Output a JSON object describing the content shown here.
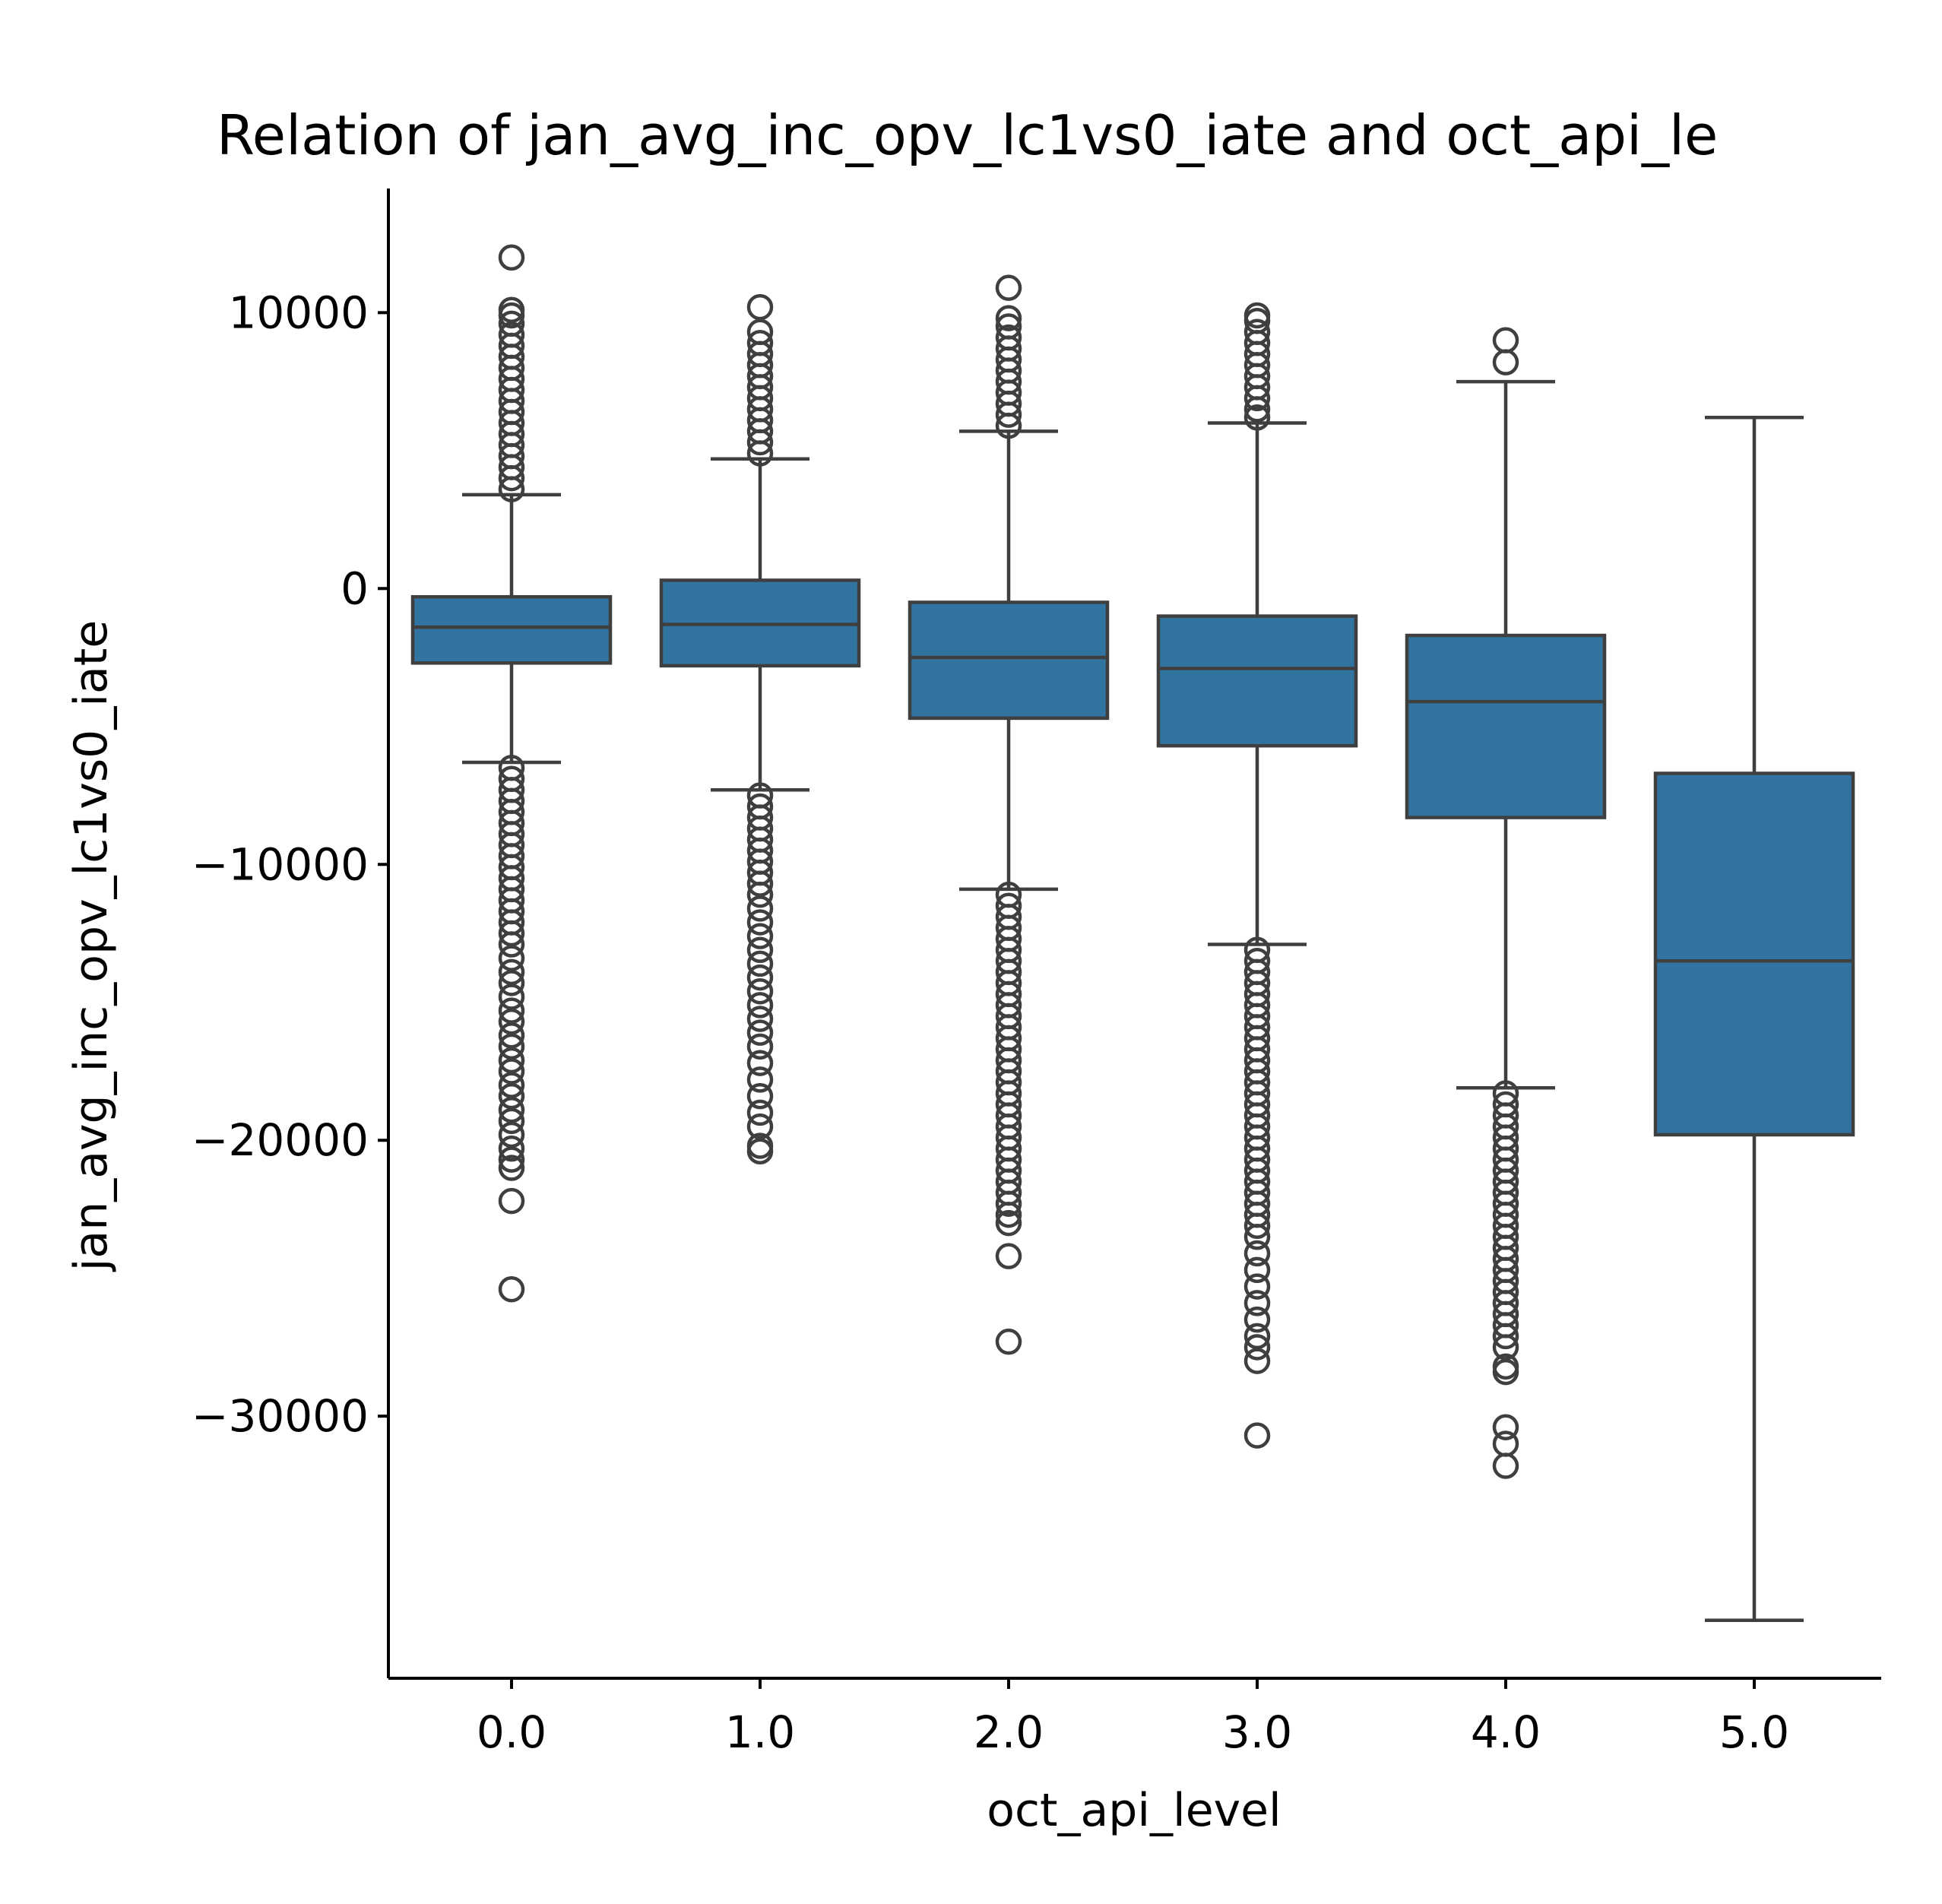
{
  "chart_data": {
    "type": "box",
    "title": "Relation of jan_avg_inc_opv_lc1vs0_iate and oct_api_le",
    "xlabel": "oct_api_level",
    "ylabel": "jan_avg_inc_opv_lc1vs0_iate",
    "categories": [
      "0.0",
      "1.0",
      "2.0",
      "3.0",
      "4.0",
      "5.0"
    ],
    "ylim": [
      -39500,
      14500
    ],
    "yticks": [
      10000,
      0,
      -10000,
      -20000,
      -30000
    ],
    "ytick_labels": [
      "10000",
      "0",
      "−10000",
      "−20000",
      "−30000"
    ],
    "box_color": "#3274a1",
    "line_color": "#3f3f3f",
    "boxes": [
      {
        "category": "0.0",
        "whisker_low": -6300,
        "q1": -2700,
        "median": -1400,
        "q3": -300,
        "whisker_high": 3400,
        "outliers_low": [
          -6500,
          -6900,
          -7300,
          -7700,
          -8100,
          -8500,
          -8900,
          -9300,
          -9700,
          -10100,
          -10500,
          -10900,
          -11300,
          -11700,
          -12100,
          -12500,
          -12900,
          -13400,
          -13900,
          -14300,
          -14800,
          -15300,
          -15700,
          -16200,
          -16600,
          -17100,
          -17500,
          -18000,
          -18400,
          -18900,
          -19300,
          -19800,
          -20300,
          -20700,
          -21000,
          -22200,
          -25400
        ],
        "outliers_high": [
          3600,
          4000,
          4400,
          4800,
          5200,
          5600,
          6000,
          6400,
          6800,
          7200,
          7600,
          8000,
          8400,
          8800,
          9200,
          9600,
          9900,
          10100,
          12000
        ]
      },
      {
        "category": "1.0",
        "whisker_low": -7300,
        "q1": -2800,
        "median": -1300,
        "q3": 300,
        "whisker_high": 4700,
        "outliers_low": [
          -7500,
          -7900,
          -8300,
          -8700,
          -9100,
          -9500,
          -9900,
          -10300,
          -10700,
          -11100,
          -11600,
          -12100,
          -12600,
          -13100,
          -13600,
          -14100,
          -14600,
          -15100,
          -15600,
          -16100,
          -16600,
          -17200,
          -17800,
          -18400,
          -19000,
          -19500,
          -20200,
          -20400
        ],
        "outliers_high": [
          4900,
          5300,
          5700,
          6100,
          6500,
          6900,
          7300,
          7700,
          8100,
          8500,
          8900,
          9300,
          10200
        ]
      },
      {
        "category": "2.0",
        "whisker_low": -10900,
        "q1": -4700,
        "median": -2500,
        "q3": -500,
        "whisker_high": 5700,
        "outliers_low": [
          -11100,
          -11500,
          -11900,
          -12300,
          -12700,
          -13100,
          -13500,
          -13900,
          -14300,
          -14700,
          -15100,
          -15500,
          -15900,
          -16300,
          -16700,
          -17100,
          -17500,
          -17900,
          -18300,
          -18700,
          -19100,
          -19500,
          -19900,
          -20300,
          -20700,
          -21100,
          -21500,
          -21900,
          -22300,
          -22700,
          -23000,
          -24200,
          -27300
        ],
        "outliers_high": [
          5900,
          6300,
          6700,
          7100,
          7500,
          7900,
          8300,
          8700,
          9100,
          9500,
          9800,
          10900
        ]
      },
      {
        "category": "3.0",
        "whisker_low": -12900,
        "q1": -5700,
        "median": -2900,
        "q3": -1000,
        "whisker_high": 6000,
        "outliers_low": [
          -13100,
          -13500,
          -13900,
          -14300,
          -14700,
          -15100,
          -15500,
          -15900,
          -16300,
          -16700,
          -17100,
          -17500,
          -17900,
          -18300,
          -18700,
          -19100,
          -19500,
          -19900,
          -20300,
          -20700,
          -21100,
          -21500,
          -21900,
          -22300,
          -22700,
          -23100,
          -23500,
          -24100,
          -24700,
          -25300,
          -25900,
          -26500,
          -27100,
          -27500,
          -28000,
          -30700
        ],
        "outliers_high": [
          6200,
          6500,
          6900,
          7300,
          7700,
          8100,
          8500,
          8900,
          9300,
          9700,
          9900
        ]
      },
      {
        "category": "4.0",
        "whisker_low": -18100,
        "q1": -8300,
        "median": -4100,
        "q3": -1700,
        "whisker_high": 7500,
        "outliers_low": [
          -18300,
          -18700,
          -19100,
          -19500,
          -19900,
          -20300,
          -20700,
          -21100,
          -21500,
          -21900,
          -22300,
          -22700,
          -23100,
          -23500,
          -23900,
          -24300,
          -24700,
          -25100,
          -25500,
          -25900,
          -26300,
          -26700,
          -27100,
          -27500,
          -28200,
          -28400,
          -30400,
          -31000,
          -31800
        ],
        "outliers_high": [
          8200,
          9000
        ]
      },
      {
        "category": "5.0",
        "whisker_low": -37400,
        "q1": -19800,
        "median": -13500,
        "q3": -6700,
        "whisker_high": 6200,
        "outliers_low": [],
        "outliers_high": []
      }
    ]
  }
}
